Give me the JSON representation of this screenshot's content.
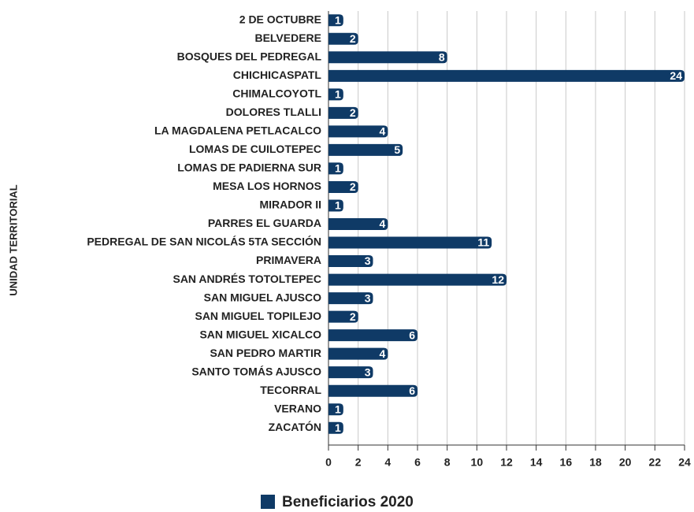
{
  "chart_data": {
    "type": "bar",
    "orientation": "horizontal",
    "y_label": "UNIDAD TERRITORIAL",
    "categories": [
      "2 DE OCTUBRE",
      "BELVEDERE",
      "BOSQUES DEL PEDREGAL",
      "CHICHICASPATL",
      "CHIMALCOYOTL",
      "DOLORES TLALLI",
      "LA MAGDALENA PETLACALCO",
      "LOMAS DE CUILOTEPEC",
      "LOMAS DE PADIERNA SUR",
      "MESA LOS HORNOS",
      "MIRADOR II",
      "PARRES EL GUARDA",
      "PEDREGAL DE SAN NICOLÁS 5TA SECCIÓN",
      "PRIMAVERA",
      "SAN ANDRÉS TOTOLTEPEC",
      "SAN MIGUEL AJUSCO",
      "SAN MIGUEL TOPILEJO",
      "SAN MIGUEL XICALCO",
      "SAN PEDRO MARTIR",
      "SANTO TOMÁS AJUSCO",
      "TECORRAL",
      "VERANO",
      "ZACATÓN"
    ],
    "series": [
      {
        "name": "Beneficiarios 2020",
        "color": "#0f3a66",
        "values": [
          1,
          2,
          8,
          24,
          1,
          2,
          4,
          5,
          1,
          2,
          1,
          4,
          11,
          3,
          12,
          3,
          2,
          6,
          4,
          3,
          6,
          1,
          1
        ]
      }
    ],
    "xlim": [
      0,
      24
    ],
    "xticks": [
      0,
      2,
      4,
      6,
      8,
      10,
      12,
      14,
      16,
      18,
      20,
      22,
      24
    ],
    "grid": true,
    "legend": "bottom"
  }
}
